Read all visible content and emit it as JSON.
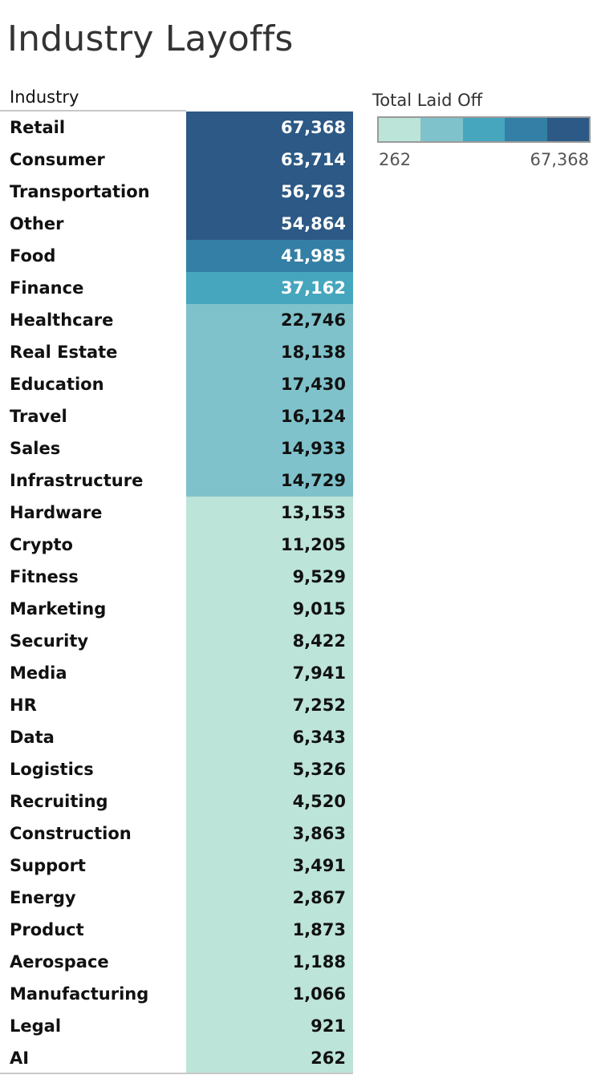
{
  "title": "Industry Layoffs",
  "chart_data": {
    "type": "table",
    "title": "Industry Layoffs",
    "column_header": "Industry",
    "measure": "Total Laid Off",
    "categories": [
      "Retail",
      "Consumer",
      "Transportation",
      "Other",
      "Food",
      "Finance",
      "Healthcare",
      "Real Estate",
      "Education",
      "Travel",
      "Sales",
      "Infrastructure",
      "Hardware",
      "Crypto",
      "Fitness",
      "Marketing",
      "Security",
      "Media",
      "HR",
      "Data",
      "Logistics",
      "Recruiting",
      "Construction",
      "Support",
      "Energy",
      "Product",
      "Aerospace",
      "Manufacturing",
      "Legal",
      "AI"
    ],
    "values": [
      67368,
      63714,
      56763,
      54864,
      41985,
      37162,
      22746,
      18138,
      17430,
      16124,
      14933,
      14729,
      13153,
      11205,
      9529,
      9015,
      8422,
      7941,
      7252,
      6343,
      5326,
      4520,
      3863,
      3491,
      2867,
      1873,
      1188,
      1066,
      921,
      262
    ],
    "value_labels": [
      "67,368",
      "63,714",
      "56,763",
      "54,864",
      "41,985",
      "37,162",
      "22,746",
      "18,138",
      "17,430",
      "16,124",
      "14,933",
      "14,729",
      "13,153",
      "11,205",
      "9,529",
      "9,015",
      "8,422",
      "7,941",
      "7,252",
      "6,343",
      "5,326",
      "4,520",
      "3,863",
      "3,491",
      "2,867",
      "1,873",
      "1,188",
      "1,066",
      "921",
      "262"
    ],
    "color_scale": {
      "title": "Total Laid Off",
      "min": 262,
      "max": 67368,
      "min_label": "262",
      "max_label": "67,368",
      "steps": 5,
      "colors": [
        "#bce4d8",
        "#7fc2cb",
        "#46a6bd",
        "#347fa5",
        "#2c5985"
      ],
      "light_text_color": "#ffffff",
      "dark_text_color": "#111111"
    }
  }
}
